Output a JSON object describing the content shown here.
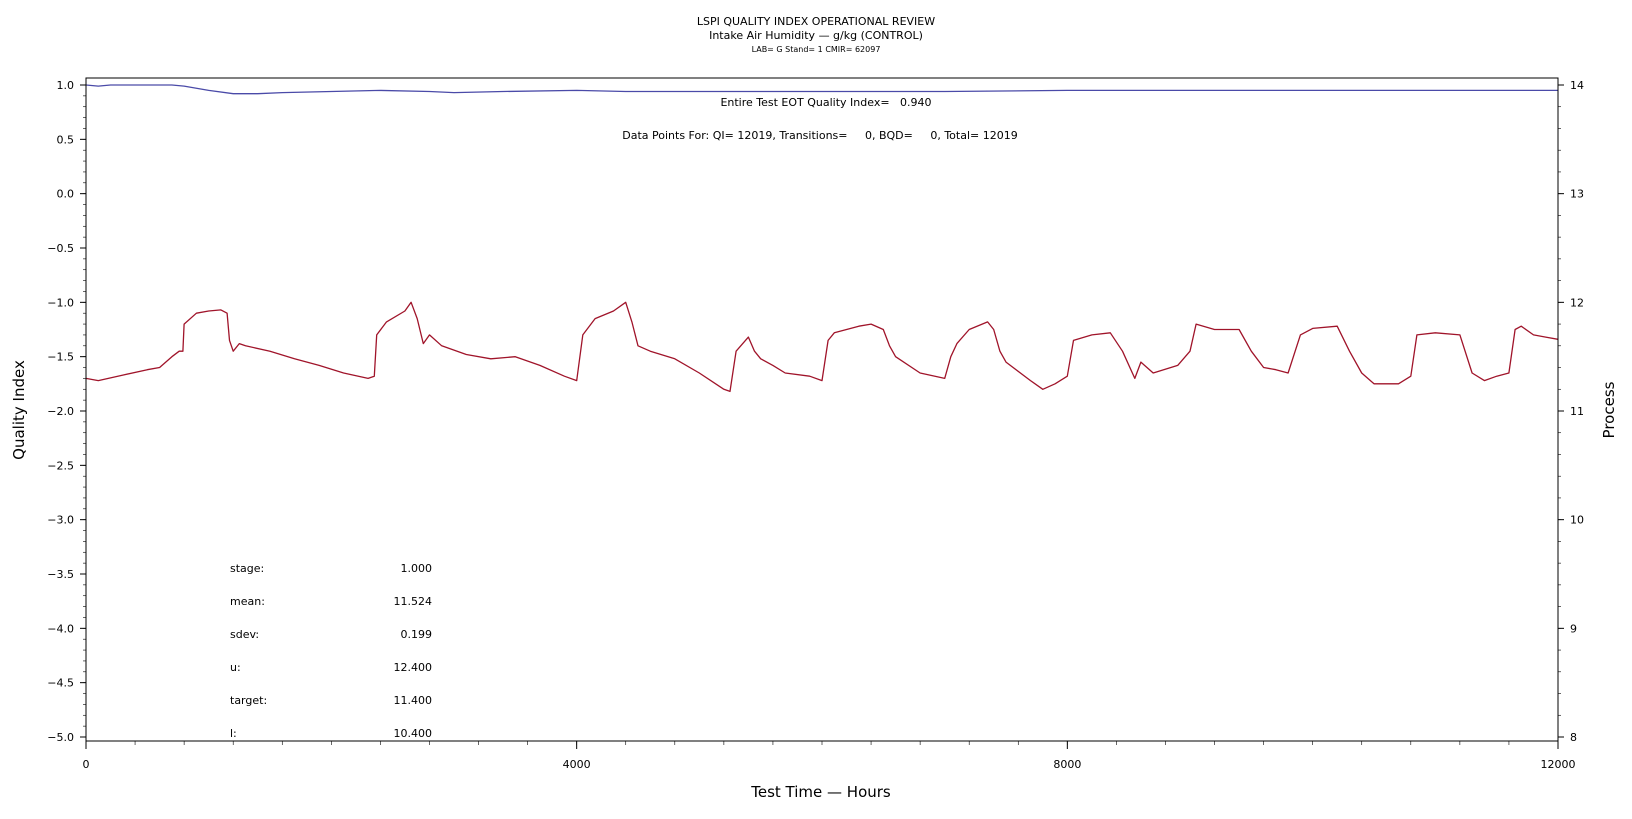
{
  "chart_data": {
    "type": "line",
    "title": "LSPI QUALITY INDEX OPERATIONAL REVIEW",
    "subtitle": "Intake Air Humidity — g/kg (CONTROL)",
    "subtitle2": "LAB= G Stand= 1 CMIR= 62097",
    "xlabel": "Test Time — Hours",
    "ylabel_left": "Quality Index",
    "ylabel_right": "Process",
    "xlim": [
      0,
      12000
    ],
    "ylim_left": [
      -5.0,
      1.0
    ],
    "ylim_right": [
      8,
      14
    ],
    "x_ticks": [
      "0",
      "4000",
      "8000",
      "12000"
    ],
    "y_left_ticks": [
      "1.0",
      "0.5",
      "0.0",
      "−0.5",
      "−1.0",
      "−1.5",
      "−2.0",
      "−2.5",
      "−3.0",
      "−3.5",
      "−4.0",
      "−4.5",
      "−5.0"
    ],
    "y_right_ticks": [
      "14",
      "13",
      "12",
      "11",
      "10",
      "9",
      "8"
    ],
    "annotations": {
      "eot_quality": "Entire Test EOT Quality Index=   0.940",
      "data_points": "Data Points For: QI= 12019, Transitions=     0, BQD=     0, Total= 12019"
    },
    "stats": [
      {
        "label": "stage:",
        "value": "1.000"
      },
      {
        "label": "mean:",
        "value": "11.524"
      },
      {
        "label": "sdev:",
        "value": "0.199"
      },
      {
        "label": "u:",
        "value": "12.400"
      },
      {
        "label": "target:",
        "value": "11.400"
      },
      {
        "label": "l:",
        "value": "10.400"
      }
    ],
    "series": [
      {
        "axis": "left",
        "color": "#4a4aa8",
        "points": [
          [
            0,
            1.0
          ],
          [
            100,
            0.99
          ],
          [
            200,
            1.0
          ],
          [
            700,
            1.0
          ],
          [
            800,
            0.99
          ],
          [
            1000,
            0.95
          ],
          [
            1200,
            0.92
          ],
          [
            1400,
            0.92
          ],
          [
            1600,
            0.93
          ],
          [
            2000,
            0.94
          ],
          [
            2400,
            0.95
          ],
          [
            2800,
            0.94
          ],
          [
            3000,
            0.93
          ],
          [
            3400,
            0.94
          ],
          [
            4000,
            0.95
          ],
          [
            4400,
            0.94
          ],
          [
            5000,
            0.94
          ],
          [
            6000,
            0.94
          ],
          [
            7000,
            0.94
          ],
          [
            8000,
            0.95
          ],
          [
            9000,
            0.95
          ],
          [
            10000,
            0.95
          ],
          [
            11000,
            0.95
          ],
          [
            12000,
            0.95
          ]
        ]
      },
      {
        "axis": "right",
        "color": "#a0142a",
        "points": [
          [
            0,
            11.3
          ],
          [
            100,
            11.28
          ],
          [
            300,
            11.33
          ],
          [
            500,
            11.38
          ],
          [
            600,
            11.4
          ],
          [
            700,
            11.5
          ],
          [
            760,
            11.55
          ],
          [
            790,
            11.55
          ],
          [
            800,
            11.8
          ],
          [
            900,
            11.9
          ],
          [
            1000,
            11.92
          ],
          [
            1100,
            11.93
          ],
          [
            1150,
            11.9
          ],
          [
            1170,
            11.65
          ],
          [
            1200,
            11.55
          ],
          [
            1250,
            11.62
          ],
          [
            1300,
            11.6
          ],
          [
            1500,
            11.55
          ],
          [
            1700,
            11.48
          ],
          [
            1900,
            11.42
          ],
          [
            2100,
            11.35
          ],
          [
            2300,
            11.3
          ],
          [
            2350,
            11.32
          ],
          [
            2370,
            11.7
          ],
          [
            2450,
            11.82
          ],
          [
            2600,
            11.92
          ],
          [
            2650,
            12.0
          ],
          [
            2700,
            11.85
          ],
          [
            2750,
            11.62
          ],
          [
            2800,
            11.7
          ],
          [
            2900,
            11.6
          ],
          [
            3100,
            11.52
          ],
          [
            3300,
            11.48
          ],
          [
            3500,
            11.5
          ],
          [
            3700,
            11.42
          ],
          [
            3900,
            11.32
          ],
          [
            4000,
            11.28
          ],
          [
            4050,
            11.7
          ],
          [
            4150,
            11.85
          ],
          [
            4300,
            11.92
          ],
          [
            4400,
            12.0
          ],
          [
            4450,
            11.82
          ],
          [
            4500,
            11.6
          ],
          [
            4600,
            11.55
          ],
          [
            4800,
            11.48
          ],
          [
            5000,
            11.35
          ],
          [
            5200,
            11.2
          ],
          [
            5250,
            11.18
          ],
          [
            5300,
            11.55
          ],
          [
            5400,
            11.68
          ],
          [
            5450,
            11.55
          ],
          [
            5500,
            11.48
          ],
          [
            5600,
            11.42
          ],
          [
            5700,
            11.35
          ],
          [
            5900,
            11.32
          ],
          [
            6000,
            11.28
          ],
          [
            6050,
            11.65
          ],
          [
            6100,
            11.72
          ],
          [
            6300,
            11.78
          ],
          [
            6400,
            11.8
          ],
          [
            6500,
            11.75
          ],
          [
            6550,
            11.6
          ],
          [
            6600,
            11.5
          ],
          [
            6800,
            11.35
          ],
          [
            7000,
            11.3
          ],
          [
            7050,
            11.5
          ],
          [
            7100,
            11.62
          ],
          [
            7200,
            11.75
          ],
          [
            7350,
            11.82
          ],
          [
            7400,
            11.75
          ],
          [
            7450,
            11.55
          ],
          [
            7500,
            11.45
          ],
          [
            7700,
            11.28
          ],
          [
            7800,
            11.2
          ],
          [
            7900,
            11.25
          ],
          [
            8000,
            11.32
          ],
          [
            8050,
            11.65
          ],
          [
            8200,
            11.7
          ],
          [
            8350,
            11.72
          ],
          [
            8450,
            11.55
          ],
          [
            8550,
            11.3
          ],
          [
            8600,
            11.45
          ],
          [
            8700,
            11.35
          ],
          [
            8900,
            11.42
          ],
          [
            9000,
            11.55
          ],
          [
            9050,
            11.8
          ],
          [
            9200,
            11.75
          ],
          [
            9400,
            11.75
          ],
          [
            9500,
            11.55
          ],
          [
            9600,
            11.4
          ],
          [
            9700,
            11.38
          ],
          [
            9800,
            11.35
          ],
          [
            9900,
            11.7
          ],
          [
            10000,
            11.76
          ],
          [
            10200,
            11.78
          ],
          [
            10300,
            11.55
          ],
          [
            10400,
            11.35
          ],
          [
            10500,
            11.25
          ],
          [
            10700,
            11.25
          ],
          [
            10800,
            11.32
          ],
          [
            10850,
            11.7
          ],
          [
            11000,
            11.72
          ],
          [
            11200,
            11.7
          ],
          [
            11300,
            11.35
          ],
          [
            11400,
            11.28
          ],
          [
            11500,
            11.32
          ],
          [
            11600,
            11.35
          ],
          [
            11650,
            11.75
          ],
          [
            11700,
            11.78
          ],
          [
            11800,
            11.7
          ],
          [
            11900,
            11.68
          ],
          [
            12000,
            11.66
          ]
        ]
      }
    ]
  }
}
